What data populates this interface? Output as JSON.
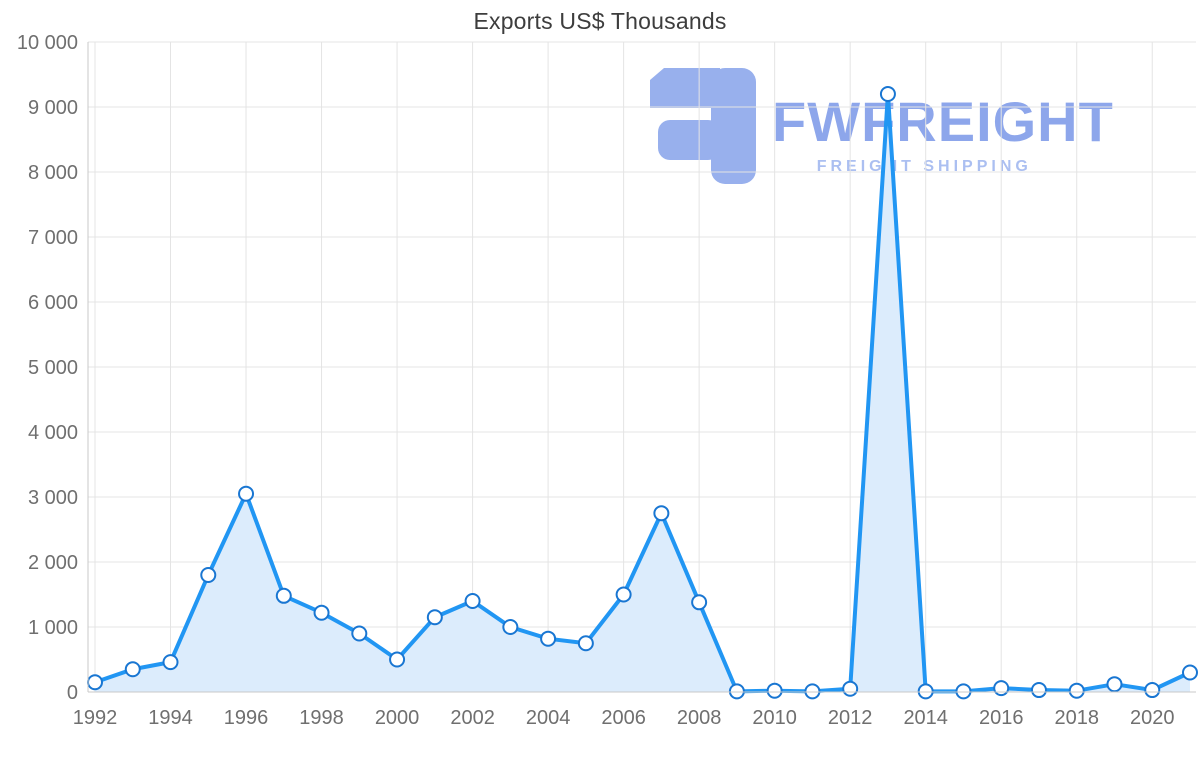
{
  "chart_data": {
    "type": "area",
    "title": "Exports US$ Thousands",
    "xlabel": "",
    "ylabel": "",
    "x": [
      1992,
      1993,
      1994,
      1995,
      1996,
      1997,
      1998,
      1999,
      2000,
      2001,
      2002,
      2003,
      2004,
      2005,
      2006,
      2007,
      2008,
      2009,
      2010,
      2011,
      2012,
      2013,
      2014,
      2015,
      2016,
      2017,
      2018,
      2019,
      2020,
      2021
    ],
    "values": [
      150,
      350,
      460,
      1800,
      3050,
      1480,
      1220,
      900,
      500,
      1150,
      1400,
      1000,
      820,
      750,
      1500,
      2750,
      1380,
      10,
      20,
      10,
      50,
      9200,
      10,
      10,
      60,
      30,
      20,
      120,
      30,
      300
    ],
    "ylim": [
      0,
      10000
    ],
    "y_tick_step": 1000,
    "y_tick_labels": [
      "0",
      "1 000",
      "2 000",
      "3 000",
      "4 000",
      "5 000",
      "6 000",
      "7 000",
      "8 000",
      "9 000",
      "10 000"
    ],
    "x_tick_labels": [
      "1992",
      "1994",
      "1996",
      "1998",
      "2000",
      "2002",
      "2004",
      "2006",
      "2008",
      "2010",
      "2012",
      "2014",
      "2016",
      "2018",
      "2020"
    ],
    "grid": true,
    "legend": "none",
    "colors": {
      "line": "#2196f3",
      "fill": "#dcecfc",
      "marker_fill": "#ffffff",
      "marker_stroke": "#1976d2",
      "grid": "#e4e4e4",
      "axis": "#c9c9c9",
      "tick_text": "#6f6f6f",
      "title_text": "#3d3d3d"
    }
  },
  "watermark": {
    "brand": "FWFREIGHT",
    "tagline": "FREIGHT SHIPPING",
    "logo_color": "#8da8ec"
  }
}
